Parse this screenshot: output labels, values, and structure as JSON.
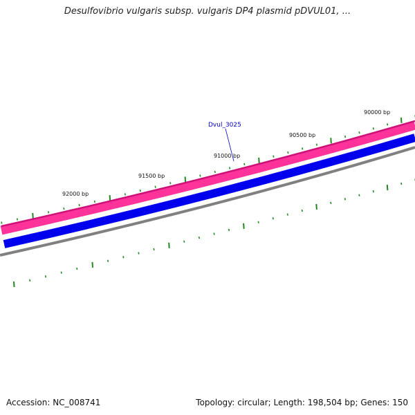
{
  "title": "Desulfovibrio vulgaris subsp. vulgaris DP4 plasmid pDVUL01, ...",
  "footer": {
    "accession": "Accession: NC_008741",
    "summary": "Topology: circular; Length: 198,504 bp; Genes: 150"
  },
  "colors": {
    "forward_strand": "#ff3399",
    "forward_edge": "#cc1177",
    "reverse_strand": "#0000ee",
    "backbone": "#808080",
    "ticks": "#228822",
    "gene_label": "#0000cc"
  },
  "ruler": {
    "ticks": [
      {
        "label": "92000 bp",
        "bp": 92000
      },
      {
        "label": "91500 bp",
        "bp": 91500
      },
      {
        "label": "91000 bp",
        "bp": 91000
      },
      {
        "label": "90500 bp",
        "bp": 90500
      },
      {
        "label": "90000 bp",
        "bp": 90000
      }
    ]
  },
  "genes": [
    {
      "label": "Dvul_3025"
    }
  ]
}
